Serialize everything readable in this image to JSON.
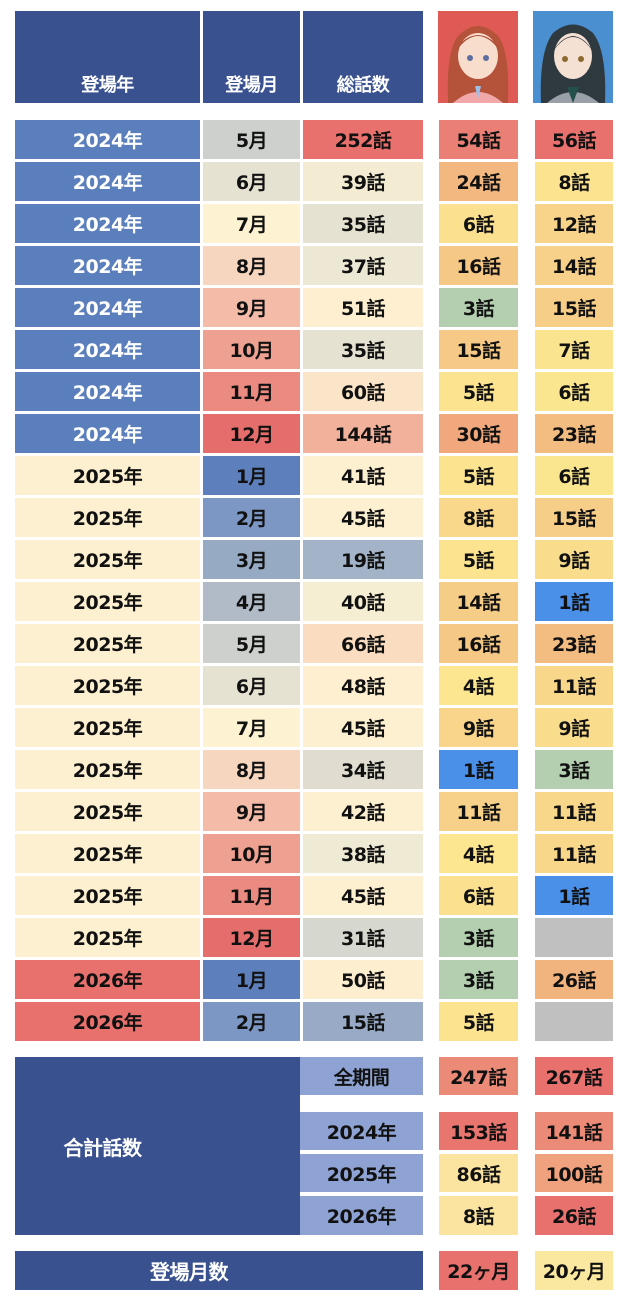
{
  "header": {
    "year": "登場年",
    "month": "登場月",
    "total": "総話数"
  },
  "avatars": [
    {
      "icon": "character-portrait-red-hair",
      "bg": "#e05a55"
    },
    {
      "icon": "character-portrait-dark-hair",
      "bg": "#4a8fd0"
    }
  ],
  "rows": [
    {
      "year": "2024年",
      "month": "5月",
      "total": "252話",
      "a": "54話",
      "b": "56話",
      "yc": "#5b7fbd",
      "mc": "#cdd0cc",
      "tc": "#e8716e",
      "ac": "#ea8075",
      "bc": "#e8716e"
    },
    {
      "year": "2024年",
      "month": "6月",
      "total": "39話",
      "a": "24話",
      "b": "8話",
      "yc": "#5b7fbd",
      "mc": "#e5e2d2",
      "tc": "#f3ecd3",
      "ac": "#f2b87f",
      "bc": "#fbe38f"
    },
    {
      "year": "2024年",
      "month": "7月",
      "total": "35話",
      "a": "6話",
      "b": "12話",
      "yc": "#5b7fbd",
      "mc": "#fdf3d3",
      "tc": "#e6e2d2",
      "ac": "#fbe08f",
      "bc": "#f8d48a"
    },
    {
      "year": "2024年",
      "month": "8月",
      "total": "37話",
      "a": "16話",
      "b": "14話",
      "yc": "#5b7fbd",
      "mc": "#f7d6bf",
      "tc": "#ede8d3",
      "ac": "#f5c885",
      "bc": "#f7d089"
    },
    {
      "year": "2024年",
      "month": "9月",
      "total": "51話",
      "a": "3話",
      "b": "15話",
      "yc": "#5b7fbd",
      "mc": "#f3bba8",
      "tc": "#fdefd0",
      "ac": "#b3cfb0",
      "bc": "#f6ce88"
    },
    {
      "year": "2024年",
      "month": "10月",
      "total": "35話",
      "a": "15話",
      "b": "7話",
      "yc": "#5b7fbd",
      "mc": "#eea190",
      "tc": "#e6e2d2",
      "ac": "#f6ca86",
      "bc": "#fbe48f"
    },
    {
      "year": "2024年",
      "month": "11月",
      "total": "60話",
      "a": "5話",
      "b": "6話",
      "yc": "#5b7fbd",
      "mc": "#ea8a80",
      "tc": "#fbe5c8",
      "ac": "#fbe38f",
      "bc": "#fbe690"
    },
    {
      "year": "2024年",
      "month": "12月",
      "total": "144話",
      "a": "30話",
      "b": "23話",
      "yc": "#5b7fbd",
      "mc": "#e56e6c",
      "tc": "#f1b19b",
      "ac": "#f0a87c",
      "bc": "#f3bc81"
    },
    {
      "year": "2025年",
      "month": "1月",
      "total": "41話",
      "a": "5話",
      "b": "6話",
      "yc": "#fdf0d0",
      "mc": "#5d80bd",
      "tc": "#fdf0d0",
      "ac": "#fbe38f",
      "bc": "#fbe690"
    },
    {
      "year": "2025年",
      "month": "2月",
      "total": "45話",
      "a": "8話",
      "b": "15話",
      "yc": "#fdf0d0",
      "mc": "#7d97c4",
      "tc": "#fdf0d0",
      "ac": "#f9d88b",
      "bc": "#f6ce88"
    },
    {
      "year": "2025年",
      "month": "3月",
      "total": "19話",
      "a": "5話",
      "b": "9話",
      "yc": "#fdf0d0",
      "mc": "#97aac4",
      "tc": "#a3b4c8",
      "ac": "#fbe38f",
      "bc": "#f9dc8c"
    },
    {
      "year": "2025年",
      "month": "4月",
      "total": "40話",
      "a": "14話",
      "b": "1話",
      "yc": "#fdf0d0",
      "mc": "#b0bbc7",
      "tc": "#f5eed2",
      "ac": "#f6cd87",
      "bc": "#4a90e8"
    },
    {
      "year": "2025年",
      "month": "5月",
      "total": "66話",
      "a": "16話",
      "b": "23話",
      "yc": "#fdf0d0",
      "mc": "#cdd0cc",
      "tc": "#fadcc0",
      "ac": "#f5c885",
      "bc": "#f3bc81"
    },
    {
      "year": "2025年",
      "month": "6月",
      "total": "48話",
      "a": "4話",
      "b": "11話",
      "yc": "#fdf0d0",
      "mc": "#e5e2d2",
      "tc": "#fdefd0",
      "ac": "#fde690",
      "bc": "#f8d68a"
    },
    {
      "year": "2025年",
      "month": "7月",
      "total": "45話",
      "a": "9話",
      "b": "9話",
      "yc": "#fdf0d0",
      "mc": "#fdf3d3",
      "tc": "#fdf0d0",
      "ac": "#f8d58a",
      "bc": "#f9dc8c"
    },
    {
      "year": "2025年",
      "month": "8月",
      "total": "34話",
      "a": "1話",
      "b": "3話",
      "yc": "#fdf0d0",
      "mc": "#f7d6bf",
      "tc": "#e0ddd0",
      "ac": "#4a90e8",
      "bc": "#b3cfb0"
    },
    {
      "year": "2025年",
      "month": "9月",
      "total": "42話",
      "a": "11話",
      "b": "11話",
      "yc": "#fdf0d0",
      "mc": "#f3bba8",
      "tc": "#fdf0d0",
      "ac": "#f7d189",
      "bc": "#f8d68a"
    },
    {
      "year": "2025年",
      "month": "10月",
      "total": "38話",
      "a": "4話",
      "b": "11話",
      "yc": "#fdf0d0",
      "mc": "#eea190",
      "tc": "#efead3",
      "ac": "#fde690",
      "bc": "#f8d68a"
    },
    {
      "year": "2025年",
      "month": "11月",
      "total": "45話",
      "a": "6話",
      "b": "1話",
      "yc": "#fdf0d0",
      "mc": "#ea8a80",
      "tc": "#fdf0d0",
      "ac": "#fbe08f",
      "bc": "#4a90e8"
    },
    {
      "year": "2025年",
      "month": "12月",
      "total": "31話",
      "a": "3話",
      "b": "",
      "yc": "#fdf0d0",
      "mc": "#e56e6c",
      "tc": "#d6d8cf",
      "ac": "#b3cfb0",
      "bc": "#c0c0c0"
    },
    {
      "year": "2026年",
      "month": "1月",
      "total": "50話",
      "a": "3話",
      "b": "26話",
      "yc": "#e8716e",
      "mc": "#5d80bd",
      "tc": "#fdeed0",
      "ac": "#b3cfb0",
      "bc": "#f2b47f"
    },
    {
      "year": "2026年",
      "month": "2月",
      "total": "15話",
      "a": "5話",
      "b": "",
      "yc": "#e8716e",
      "mc": "#7d97c4",
      "tc": "#98aac6",
      "ac": "#fbe38f",
      "bc": "#c0c0c0"
    }
  ],
  "summary": {
    "title": "合計話数",
    "rows": [
      {
        "label": "全期間",
        "a": "247話",
        "b": "267話",
        "ac": "#ec8a78",
        "bc": "#e8716e"
      },
      {
        "label": "2024年",
        "a": "153話",
        "b": "141話",
        "ac": "#e8766f",
        "bc": "#ec8a78"
      },
      {
        "label": "2025年",
        "a": "86話",
        "b": "100話",
        "ac": "#fbe3a0",
        "bc": "#f0a27e"
      },
      {
        "label": "2026年",
        "a": "8話",
        "b": "26話",
        "ac": "#fbe3a0",
        "bc": "#e8716e"
      }
    ]
  },
  "months_count": {
    "label": "登場月数",
    "a": "22ヶ月",
    "b": "20ヶ月",
    "ac": "#e8716e",
    "bc": "#fbe8a0"
  }
}
